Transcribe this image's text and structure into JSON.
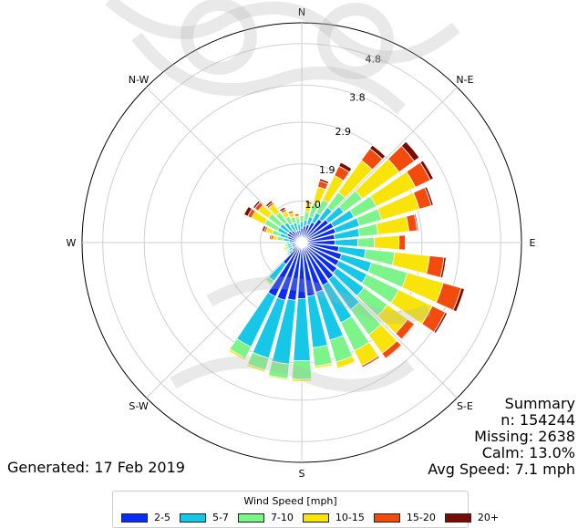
{
  "chart_data": {
    "type": "windrose",
    "directions": [
      "N",
      "N-E",
      "E",
      "S-E",
      "S",
      "S-W",
      "W",
      "N-W"
    ],
    "r_ticks": [
      "1.0",
      "1.9",
      "2.9",
      "3.8",
      "4.8"
    ],
    "r_max": 5.3,
    "legend_title": "Wind Speed [mph]",
    "bins": [
      {
        "label": "2-5",
        "color": "#0a2cf5"
      },
      {
        "label": "5-7",
        "color": "#17c7e8"
      },
      {
        "label": "7-10",
        "color": "#7df48a"
      },
      {
        "label": "10-15",
        "color": "#f8e40a"
      },
      {
        "label": "15-20",
        "color": "#f34a0d"
      },
      {
        "label": "20+",
        "color": "#7a0c04"
      }
    ],
    "sector_width_deg": 10,
    "sectors": [
      {
        "dir": 0,
        "values": [
          0.35,
          0.15,
          0.15,
          0.0,
          0.0,
          0.0
        ]
      },
      {
        "dir": 10,
        "values": [
          0.4,
          0.15,
          0.2,
          0.2,
          0.05,
          0.0
        ]
      },
      {
        "dir": 20,
        "values": [
          0.45,
          0.2,
          0.35,
          0.4,
          0.15,
          0.05
        ]
      },
      {
        "dir": 30,
        "values": [
          0.55,
          0.25,
          0.35,
          0.65,
          0.25,
          0.1
        ]
      },
      {
        "dir": 40,
        "values": [
          0.7,
          0.35,
          0.45,
          0.95,
          0.35,
          0.1
        ]
      },
      {
        "dir": 50,
        "values": [
          0.8,
          0.45,
          0.55,
          1.1,
          0.45,
          0.15
        ]
      },
      {
        "dir": 60,
        "values": [
          0.85,
          0.55,
          0.6,
          1.05,
          0.4,
          0.08
        ]
      },
      {
        "dir": 70,
        "values": [
          0.85,
          0.6,
          0.55,
          0.95,
          0.3,
          0.05
        ]
      },
      {
        "dir": 80,
        "values": [
          0.8,
          0.6,
          0.45,
          0.75,
          0.2,
          0.03
        ]
      },
      {
        "dir": 90,
        "values": [
          0.8,
          0.55,
          0.4,
          0.6,
          0.15,
          0.02
        ]
      },
      {
        "dir": 100,
        "values": [
          0.9,
          0.65,
          0.7,
          0.85,
          0.35,
          0.05
        ]
      },
      {
        "dir": 110,
        "values": [
          1.0,
          0.75,
          0.9,
          0.9,
          0.45,
          0.08
        ]
      },
      {
        "dir": 120,
        "values": [
          1.0,
          0.75,
          0.85,
          0.9,
          0.35,
          0.05
        ]
      },
      {
        "dir": 130,
        "values": [
          1.05,
          0.8,
          0.7,
          0.6,
          0.2,
          0.02
        ]
      },
      {
        "dir": 140,
        "values": [
          1.1,
          0.9,
          0.75,
          0.55,
          0.15,
          0.02
        ]
      },
      {
        "dir": 150,
        "values": [
          1.15,
          1.0,
          0.75,
          0.4,
          0.05,
          0.0
        ]
      },
      {
        "dir": 160,
        "values": [
          1.25,
          1.2,
          0.55,
          0.15,
          0.02,
          0.0
        ]
      },
      {
        "dir": 170,
        "values": [
          1.3,
          1.25,
          0.45,
          0.05,
          0.0,
          0.0
        ]
      },
      {
        "dir": 180,
        "values": [
          1.35,
          1.5,
          0.45,
          0.05,
          0.0,
          0.0
        ]
      },
      {
        "dir": 190,
        "values": [
          1.4,
          1.55,
          0.35,
          0.03,
          0.0,
          0.0
        ]
      },
      {
        "dir": 200,
        "values": [
          1.45,
          1.45,
          0.3,
          0.05,
          0.0,
          0.0
        ]
      },
      {
        "dir": 210,
        "values": [
          1.45,
          1.35,
          0.3,
          0.05,
          0.0,
          0.0
        ]
      },
      {
        "dir": 220,
        "values": [
          0.65,
          0.5,
          0.1,
          0.03,
          0.0,
          0.0
        ]
      },
      {
        "dir": 230,
        "values": [
          0.3,
          0.1,
          0.05,
          0.0,
          0.0,
          0.0
        ]
      },
      {
        "dir": 240,
        "values": [
          0.25,
          0.1,
          0.05,
          0.03,
          0.0,
          0.0
        ]
      },
      {
        "dir": 250,
        "values": [
          0.25,
          0.1,
          0.05,
          0.05,
          0.0,
          0.0
        ]
      },
      {
        "dir": 260,
        "values": [
          0.25,
          0.1,
          0.05,
          0.0,
          0.0,
          0.0
        ]
      },
      {
        "dir": 270,
        "values": [
          0.2,
          0.1,
          0.08,
          0.03,
          0.0,
          0.0
        ]
      },
      {
        "dir": 280,
        "values": [
          0.3,
          0.15,
          0.15,
          0.1,
          0.05,
          0.03
        ]
      },
      {
        "dir": 290,
        "values": [
          0.35,
          0.2,
          0.2,
          0.15,
          0.05,
          0.05
        ]
      },
      {
        "dir": 300,
        "values": [
          0.4,
          0.25,
          0.35,
          0.35,
          0.1,
          0.1
        ]
      },
      {
        "dir": 310,
        "values": [
          0.4,
          0.25,
          0.35,
          0.3,
          0.1,
          0.05
        ]
      },
      {
        "dir": 320,
        "values": [
          0.35,
          0.25,
          0.3,
          0.25,
          0.05,
          0.05
        ]
      },
      {
        "dir": 330,
        "values": [
          0.3,
          0.2,
          0.2,
          0.15,
          0.05,
          0.05
        ]
      },
      {
        "dir": 340,
        "values": [
          0.3,
          0.2,
          0.15,
          0.1,
          0.05,
          0.0
        ]
      },
      {
        "dir": 350,
        "values": [
          0.3,
          0.15,
          0.15,
          0.05,
          0.05,
          0.0
        ]
      }
    ]
  },
  "summary": {
    "title": "Summary",
    "n": "n: 154244",
    "missing": "Missing: 2638",
    "calm": "Calm: 13.0%",
    "avg_speed": "Avg Speed: 7.1 mph"
  },
  "generated": "Generated: 17 Feb 2019"
}
